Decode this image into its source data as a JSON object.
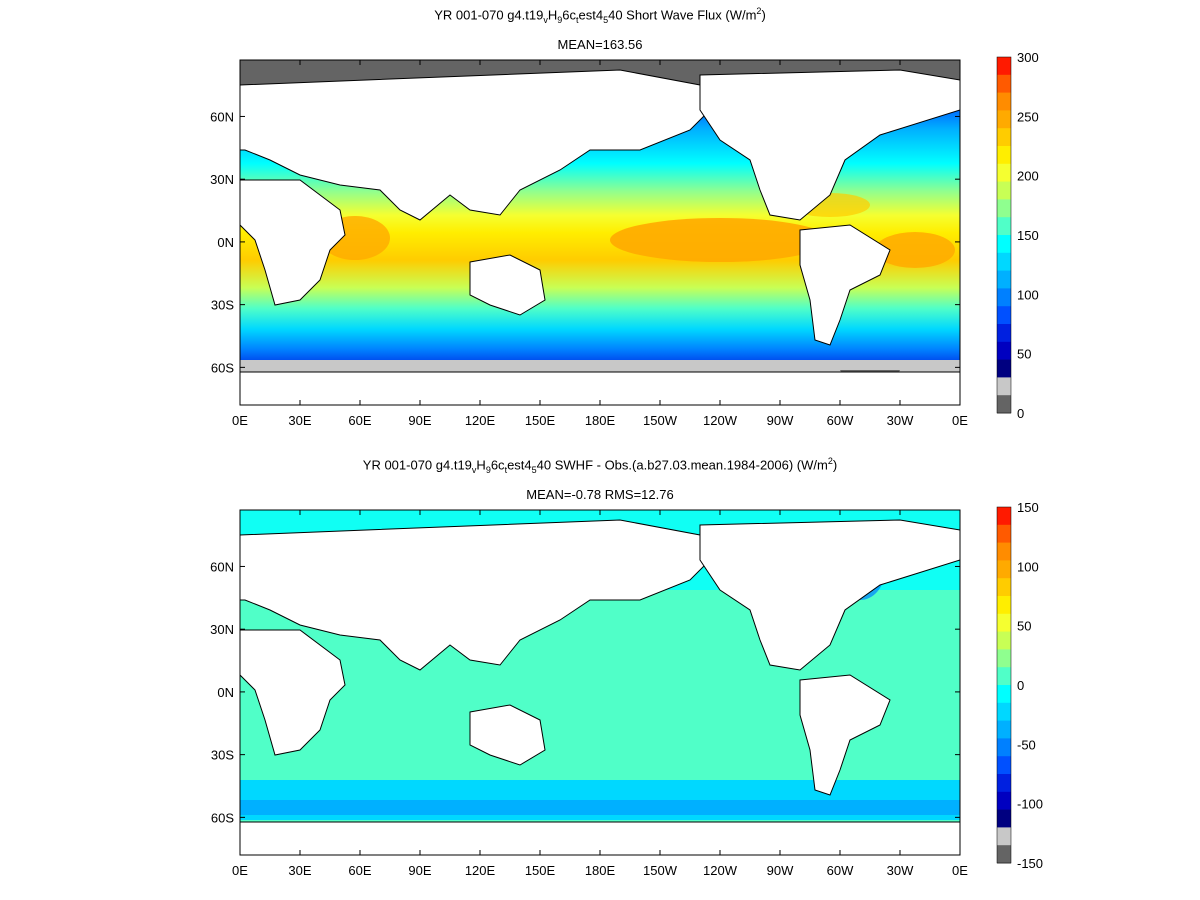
{
  "panels": [
    {
      "title_prefix": "YR 001-070 g4.t19",
      "title_sub1": "v",
      "title_mid1": "H",
      "title_sub2": "9",
      "title_mid2": "6c",
      "title_sub3": "t",
      "title_mid3": "est4",
      "title_sub4": "5",
      "title_suffix": "40  Short Wave Flux (W/m",
      "title_sup": "2",
      "title_end": ")",
      "subtitle": "MEAN=163.56",
      "colorbar_ticks": [
        "300",
        "250",
        "200",
        "150",
        "100",
        "50",
        "0"
      ],
      "colorbar_colors": [
        "#ff1a00",
        "#ff5a00",
        "#ff8c00",
        "#ffaa00",
        "#ffcc00",
        "#ffee00",
        "#f5ff30",
        "#c8ff55",
        "#8fff8f",
        "#50ffc8",
        "#00ffff",
        "#00d8ff",
        "#00b0ff",
        "#0080ff",
        "#0050ff",
        "#0020e0",
        "#0000c0",
        "#000080",
        "#c8c8c8",
        "#646464"
      ]
    },
    {
      "title_prefix": "YR 001-070 g4.t19",
      "title_sub1": "v",
      "title_mid1": "H",
      "title_sub2": "9",
      "title_mid2": "6c",
      "title_sub3": "t",
      "title_mid3": "est4",
      "title_sub4": "5",
      "title_suffix": "40 SWHF - Obs.(a.b27.03.mean.1984-2006) (W/m",
      "title_sup": "2",
      "title_end": ")",
      "subtitle": "MEAN=-0.78 RMS=12.76",
      "colorbar_ticks": [
        "150",
        "100",
        "50",
        "0",
        "-50",
        "-100",
        "-150"
      ],
      "colorbar_colors": [
        "#ff1a00",
        "#ff5a00",
        "#ff8c00",
        "#ffaa00",
        "#ffcc00",
        "#ffee00",
        "#f5ff30",
        "#c8ff55",
        "#8fff8f",
        "#50ffc8",
        "#00ffff",
        "#00d8ff",
        "#00b0ff",
        "#0080ff",
        "#0050ff",
        "#0020e0",
        "#0000c0",
        "#000080",
        "#c8c8c8",
        "#646464"
      ]
    }
  ],
  "lon_labels": [
    "0E",
    "30E",
    "60E",
    "90E",
    "120E",
    "150E",
    "180E",
    "150W",
    "120W",
    "90W",
    "60W",
    "30W",
    "0E"
  ],
  "lat_labels": [
    "60N",
    "30N",
    "0N",
    "30S",
    "60S"
  ],
  "colors": {
    "land": "#ffffff",
    "ice_dark": "#646464",
    "ice_light": "#c8c8c8"
  }
}
